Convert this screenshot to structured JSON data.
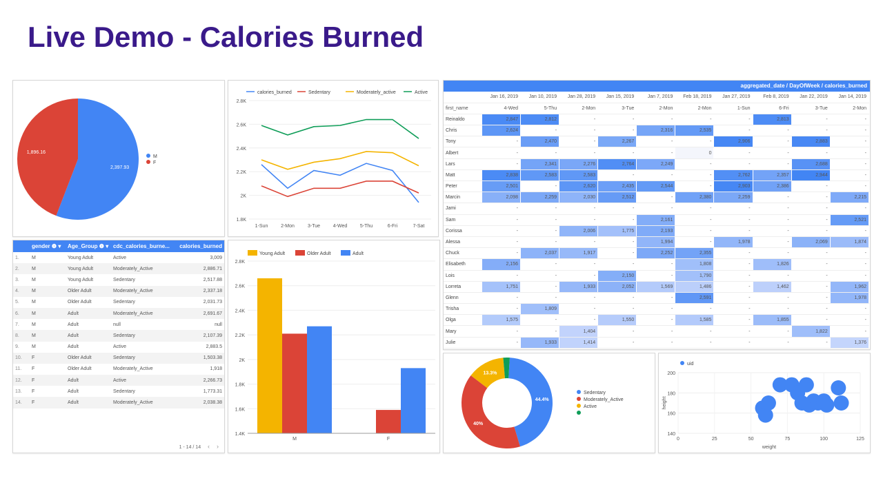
{
  "title": "Live Demo - Calories Burned",
  "pie": {
    "slices": [
      {
        "label": "M",
        "value": 2397.93,
        "value_label": "2,397.93",
        "color": "#4285f4"
      },
      {
        "label": "F",
        "value": 1896.16,
        "value_label": "1,896.16",
        "color": "#db4437"
      }
    ]
  },
  "line": {
    "legend": [
      "calories_burned",
      "Sedentary",
      "Moderately_active",
      "Active"
    ],
    "colors": [
      "#4285f4",
      "#db4437",
      "#f4b400",
      "#0f9d58"
    ],
    "x": [
      "1-Sun",
      "2-Mon",
      "3-Tue",
      "4-Wed",
      "5-Thu",
      "6-Fri",
      "7-Sat"
    ],
    "yticks": [
      "2.8K",
      "2.6K",
      "2.4K",
      "2.2K",
      "2K",
      "1.8K"
    ],
    "series": [
      [
        2260,
        2060,
        2210,
        2170,
        2270,
        2210,
        1940
      ],
      [
        2080,
        1990,
        2060,
        2060,
        2120,
        2120,
        2020
      ],
      [
        2300,
        2220,
        2280,
        2310,
        2370,
        2360,
        2250
      ],
      [
        2590,
        2510,
        2580,
        2590,
        2640,
        2640,
        2480
      ]
    ]
  },
  "left_table": {
    "headers": [
      "gender",
      "Age_Group",
      "cdc_calories_burne...",
      "calories_burned"
    ],
    "rows": [
      [
        "1.",
        "M",
        "Young Adult",
        "Active",
        "3,009"
      ],
      [
        "2.",
        "M",
        "Young Adult",
        "Moderately_Active",
        "2,886.71"
      ],
      [
        "3.",
        "M",
        "Young Adult",
        "Sedentary",
        "2,517.88"
      ],
      [
        "4.",
        "M",
        "Older Adult",
        "Moderately_Active",
        "2,337.18"
      ],
      [
        "5.",
        "M",
        "Older Adult",
        "Sedentary",
        "2,031.73"
      ],
      [
        "6.",
        "M",
        "Adult",
        "Moderately_Active",
        "2,691.67"
      ],
      [
        "7.",
        "M",
        "Adult",
        "null",
        "null"
      ],
      [
        "8.",
        "M",
        "Adult",
        "Sedentary",
        "2,107.39"
      ],
      [
        "9.",
        "M",
        "Adult",
        "Active",
        "2,883.5"
      ],
      [
        "10.",
        "F",
        "Older Adult",
        "Sedentary",
        "1,503.38"
      ],
      [
        "11.",
        "F",
        "Older Adult",
        "Moderately_Active",
        "1,918"
      ],
      [
        "12.",
        "F",
        "Adult",
        "Active",
        "2,266.73"
      ],
      [
        "13.",
        "F",
        "Adult",
        "Sedentary",
        "1,773.31"
      ],
      [
        "14.",
        "F",
        "Adult",
        "Moderately_Active",
        "2,038.38"
      ]
    ],
    "pager": "1 - 14 / 14",
    "prev": "‹",
    "next": "›"
  },
  "bar": {
    "legend": [
      "Young Adult",
      "Older Adult",
      "Adult"
    ],
    "colors": [
      "#f4b400",
      "#db4437",
      "#4285f4"
    ],
    "categories": [
      "M",
      "F"
    ],
    "yticks": [
      "2.8K",
      "2.6K",
      "2.4K",
      "2.2K",
      "2K",
      "1.8K",
      "1.6K",
      "1.4K"
    ],
    "values": [
      [
        2660,
        2210,
        2270
      ],
      [
        null,
        1590,
        1930
      ]
    ]
  },
  "pivot": {
    "header": "aggregated_date / DayOfWeek / calories_burned",
    "dates": [
      "Jan 16, 2019",
      "Jan 10, 2019",
      "Jan 28, 2019",
      "Jan 15, 2019",
      "Jan 7, 2019",
      "Feb 18, 2019",
      "Jan 27, 2019",
      "Feb 8, 2019",
      "Jan 22, 2019",
      "Jan 14, 2019"
    ],
    "row_header": "first_name",
    "days": [
      "4-Wed",
      "5-Thu",
      "2-Mon",
      "3-Tue",
      "2-Mon",
      "2-Mon",
      "1-Sun",
      "6-Fri",
      "3-Tue",
      "2-Mon"
    ],
    "rows": [
      {
        "name": "Reinaldo",
        "cells": [
          "2,847",
          "2,812",
          "-",
          "-",
          "-",
          "-",
          "-",
          "2,813",
          "-",
          "-"
        ]
      },
      {
        "name": "Chris",
        "cells": [
          "2,624",
          "-",
          "-",
          "-",
          "2,316",
          "2,535",
          "-",
          "-",
          "-",
          "-"
        ]
      },
      {
        "name": "Tony",
        "cells": [
          "-",
          "2,470",
          "-",
          "2,267",
          "-",
          "-",
          "2,906",
          "-",
          "2,883",
          "-"
        ]
      },
      {
        "name": "Albert",
        "cells": [
          "-",
          "-",
          "-",
          "-",
          "-",
          "0",
          "-",
          "-",
          "-",
          "-"
        ]
      },
      {
        "name": "Lars",
        "cells": [
          "-",
          "2,341",
          "2,276",
          "2,764",
          "2,249",
          "-",
          "-",
          "-",
          "2,688",
          "-"
        ]
      },
      {
        "name": "Matt",
        "cells": [
          "2,838",
          "2,583",
          "2,583",
          "-",
          "-",
          "-",
          "2,762",
          "2,357",
          "2,944",
          "-"
        ]
      },
      {
        "name": "Peter",
        "cells": [
          "2,501",
          "-",
          "2,620",
          "2,435",
          "2,544",
          "-",
          "2,903",
          "2,386",
          "-",
          "-"
        ]
      },
      {
        "name": "Marcin",
        "cells": [
          "2,098",
          "2,259",
          "2,030",
          "2,512",
          "-",
          "2,380",
          "2,259",
          "-",
          "-",
          "2,215"
        ]
      },
      {
        "name": "Jami",
        "cells": [
          "-",
          "-",
          "-",
          "-",
          "-",
          "-",
          "-",
          "-",
          "-",
          "-"
        ]
      },
      {
        "name": "Sam",
        "cells": [
          "-",
          "-",
          "-",
          "-",
          "2,161",
          "-",
          "-",
          "-",
          "-",
          "2,521"
        ]
      },
      {
        "name": "Corissa",
        "cells": [
          "-",
          "-",
          "2,006",
          "1,775",
          "2,193",
          "-",
          "-",
          "-",
          "-",
          "-"
        ]
      },
      {
        "name": "Alessa",
        "cells": [
          "-",
          "-",
          "-",
          "-",
          "1,994",
          "-",
          "1,978",
          "-",
          "2,069",
          "1,874"
        ]
      },
      {
        "name": "Chuck",
        "cells": [
          "-",
          "2,037",
          "1,917",
          "-",
          "2,252",
          "2,355",
          "-",
          "-",
          "-",
          "-"
        ]
      },
      {
        "name": "Elisabeth",
        "cells": [
          "2,156",
          "-",
          "-",
          "-",
          "-",
          "1,808",
          "-",
          "1,826",
          "-",
          "-"
        ]
      },
      {
        "name": "Lois",
        "cells": [
          "-",
          "-",
          "-",
          "2,150",
          "-",
          "1,790",
          "-",
          "-",
          "-",
          "-"
        ]
      },
      {
        "name": "Lorreta",
        "cells": [
          "1,751",
          "-",
          "1,933",
          "2,052",
          "1,569",
          "1,486",
          "-",
          "1,462",
          "-",
          "1,962"
        ]
      },
      {
        "name": "Glenn",
        "cells": [
          "-",
          "-",
          "-",
          "-",
          "-",
          "2,591",
          "-",
          "-",
          "-",
          "1,978"
        ]
      },
      {
        "name": "Trisha",
        "cells": [
          "-",
          "1,809",
          "-",
          "-",
          "-",
          "-",
          "-",
          "-",
          "-",
          "-"
        ]
      },
      {
        "name": "Olga",
        "cells": [
          "1,575",
          "-",
          "-",
          "1,550",
          "-",
          "1,585",
          "-",
          "1,855",
          "-",
          "-"
        ]
      },
      {
        "name": "Mary",
        "cells": [
          "-",
          "-",
          "1,404",
          "-",
          "-",
          "-",
          "-",
          "-",
          "1,822",
          "-"
        ]
      },
      {
        "name": "Julie",
        "cells": [
          "-",
          "1,933",
          "1,414",
          "-",
          "-",
          "-",
          "-",
          "-",
          "-",
          "1,376"
        ]
      }
    ]
  },
  "donut": {
    "legend": [
      "Sedentary",
      "Moderately_Active",
      "Active",
      ""
    ],
    "colors": [
      "#4285f4",
      "#db4437",
      "#f4b400",
      "#0f9d58"
    ],
    "values": [
      44.4,
      40,
      13.3,
      2.3
    ],
    "labels": [
      "44.4%",
      "40%",
      "13.3%",
      ""
    ]
  },
  "scatter": {
    "legend": "uid",
    "xlabel": "weight",
    "ylabel": "height",
    "xticks": [
      "0",
      "25",
      "50",
      "75",
      "100",
      "125"
    ],
    "yticks": [
      "200",
      "180",
      "160",
      "140"
    ],
    "points": [
      [
        58,
        165
      ],
      [
        60,
        158
      ],
      [
        62,
        170
      ],
      [
        70,
        188
      ],
      [
        78,
        188
      ],
      [
        82,
        180
      ],
      [
        85,
        170
      ],
      [
        88,
        188
      ],
      [
        90,
        168
      ],
      [
        93,
        172
      ],
      [
        96,
        170
      ],
      [
        100,
        172
      ],
      [
        102,
        168
      ],
      [
        110,
        185
      ],
      [
        112,
        170
      ]
    ]
  }
}
